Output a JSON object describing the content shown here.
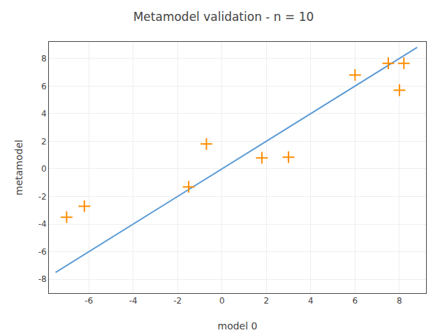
{
  "chart_data": {
    "type": "scatter",
    "title": "Metamodel validation - n = 10",
    "xlabel": "model 0",
    "ylabel": "metamodel",
    "series": [
      {
        "type": "line",
        "color": "#5b9bd5",
        "line_style": "solid",
        "x": [
          -7.5,
          8.8
        ],
        "values": [
          -7.5,
          8.8
        ]
      },
      {
        "type": "scatter",
        "color": "#ff8c00",
        "marker": "plus",
        "x": [
          -7.0,
          -6.2,
          -1.5,
          -0.7,
          1.8,
          3.0,
          6.0,
          7.5,
          8.0,
          8.2
        ],
        "values": [
          -3.5,
          -2.7,
          -1.3,
          1.8,
          0.8,
          0.85,
          6.8,
          7.65,
          5.7,
          7.65
        ]
      }
    ],
    "xlim": [
      -7.8,
      9.2
    ],
    "ylim": [
      -9.0,
      9.2
    ],
    "xticks": [
      -6,
      -4,
      -2,
      0,
      2,
      4,
      6,
      8
    ],
    "yticks": [
      -8,
      -6,
      -4,
      -2,
      0,
      2,
      4,
      6,
      8
    ],
    "grid": true
  }
}
